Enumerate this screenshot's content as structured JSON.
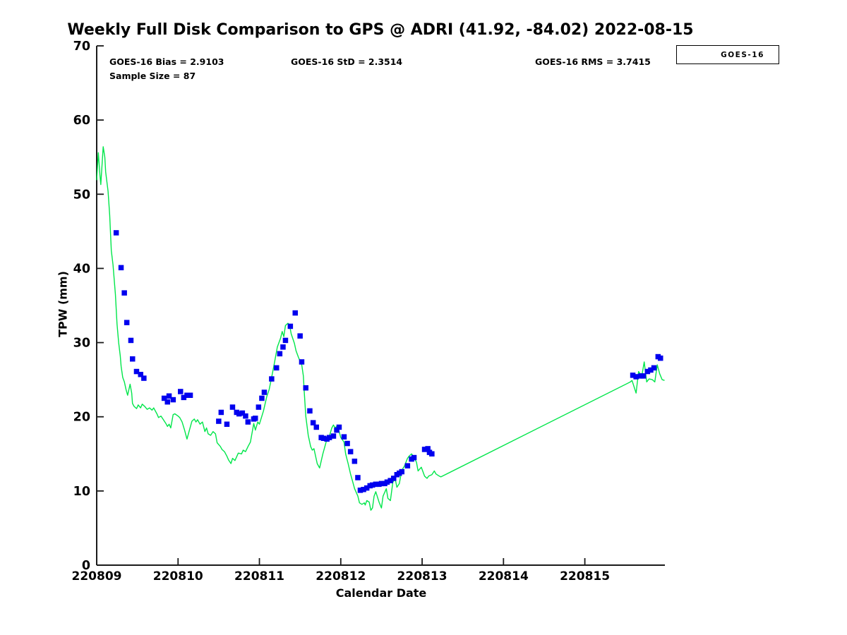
{
  "title": "Weekly Full Disk Comparison to GPS @ ADRI (41.92, -84.02) 2022-08-15",
  "stats": {
    "bias": "GOES-16 Bias = 2.9103",
    "std": "GOES-16 StD = 2.3514",
    "rms": "GOES-16 RMS = 3.7415",
    "sample": "Sample Size = 87"
  },
  "legend": {
    "label": "GOES-16",
    "position": "top-right"
  },
  "axes": {
    "xlabel": "Calendar Date",
    "ylabel": "TPW (mm)"
  },
  "colors": {
    "gps_line": "#00e64a",
    "goes_marker": "#0000ee",
    "axis": "#1a1a1a",
    "background": "#ffffff"
  },
  "chart_data": {
    "type": "line",
    "title": "Weekly Full Disk Comparison to GPS @ ADRI (41.92, -84.02) 2022-08-15",
    "xlabel": "Calendar Date",
    "ylabel": "TPW (mm)",
    "xlim": [
      0,
      6.984
    ],
    "ylim": [
      0,
      70
    ],
    "grid": false,
    "legend_entries": [
      "GOES-16"
    ],
    "x_ticks": [
      {
        "pos": 0,
        "label": "220809"
      },
      {
        "pos": 1,
        "label": "220810"
      },
      {
        "pos": 2,
        "label": "220811"
      },
      {
        "pos": 3,
        "label": "220812"
      },
      {
        "pos": 4,
        "label": "220813"
      },
      {
        "pos": 5,
        "label": "220814"
      },
      {
        "pos": 6,
        "label": "220815"
      }
    ],
    "y_ticks": [
      0,
      10,
      20,
      30,
      40,
      50,
      60,
      70
    ],
    "series": [
      {
        "name": "GPS",
        "type": "line",
        "color_key": "gps_line",
        "points": [
          [
            0.0,
            51.9
          ],
          [
            0.02,
            55.6
          ],
          [
            0.04,
            52.6
          ],
          [
            0.05,
            51.3
          ],
          [
            0.08,
            56.4
          ],
          [
            0.1,
            55.0
          ],
          [
            0.11,
            53.0
          ],
          [
            0.14,
            50.4
          ],
          [
            0.16,
            47.2
          ],
          [
            0.18,
            42.4
          ],
          [
            0.2,
            40.5
          ],
          [
            0.23,
            36.5
          ],
          [
            0.25,
            32.5
          ],
          [
            0.27,
            30.0
          ],
          [
            0.29,
            28.2
          ],
          [
            0.3,
            26.8
          ],
          [
            0.32,
            25.3
          ],
          [
            0.34,
            24.7
          ],
          [
            0.36,
            23.7
          ],
          [
            0.38,
            22.9
          ],
          [
            0.41,
            24.4
          ],
          [
            0.43,
            23.2
          ],
          [
            0.44,
            21.8
          ],
          [
            0.46,
            21.4
          ],
          [
            0.49,
            21.1
          ],
          [
            0.51,
            21.6
          ],
          [
            0.54,
            21.2
          ],
          [
            0.56,
            21.7
          ],
          [
            0.59,
            21.4
          ],
          [
            0.62,
            21.0
          ],
          [
            0.65,
            21.2
          ],
          [
            0.68,
            20.9
          ],
          [
            0.7,
            21.2
          ],
          [
            0.74,
            20.4
          ],
          [
            0.76,
            19.9
          ],
          [
            0.79,
            20.1
          ],
          [
            0.82,
            19.6
          ],
          [
            0.85,
            19.1
          ],
          [
            0.87,
            18.7
          ],
          [
            0.89,
            19.0
          ],
          [
            0.91,
            18.5
          ],
          [
            0.94,
            20.3
          ],
          [
            0.96,
            20.4
          ],
          [
            1.0,
            20.1
          ],
          [
            1.02,
            19.9
          ],
          [
            1.05,
            19.3
          ],
          [
            1.08,
            18.2
          ],
          [
            1.11,
            17.0
          ],
          [
            1.14,
            18.2
          ],
          [
            1.17,
            19.4
          ],
          [
            1.2,
            19.7
          ],
          [
            1.22,
            19.3
          ],
          [
            1.24,
            19.6
          ],
          [
            1.27,
            19.0
          ],
          [
            1.3,
            19.3
          ],
          [
            1.33,
            18.0
          ],
          [
            1.35,
            18.5
          ],
          [
            1.37,
            17.7
          ],
          [
            1.4,
            17.5
          ],
          [
            1.43,
            18.0
          ],
          [
            1.46,
            17.7
          ],
          [
            1.48,
            16.5
          ],
          [
            1.52,
            16.0
          ],
          [
            1.54,
            15.6
          ],
          [
            1.57,
            15.3
          ],
          [
            1.6,
            14.7
          ],
          [
            1.62,
            14.2
          ],
          [
            1.65,
            13.7
          ],
          [
            1.67,
            14.4
          ],
          [
            1.7,
            14.1
          ],
          [
            1.74,
            15.1
          ],
          [
            1.78,
            15.0
          ],
          [
            1.8,
            15.5
          ],
          [
            1.83,
            15.3
          ],
          [
            1.86,
            16.0
          ],
          [
            1.89,
            16.6
          ],
          [
            1.93,
            19.1
          ],
          [
            1.95,
            18.2
          ],
          [
            1.98,
            19.3
          ],
          [
            2.0,
            19.0
          ],
          [
            2.05,
            20.8
          ],
          [
            2.09,
            22.7
          ],
          [
            2.12,
            23.7
          ],
          [
            2.15,
            25.3
          ],
          [
            2.18,
            27.0
          ],
          [
            2.22,
            29.4
          ],
          [
            2.26,
            30.6
          ],
          [
            2.28,
            31.5
          ],
          [
            2.3,
            30.8
          ],
          [
            2.32,
            32.3
          ],
          [
            2.35,
            32.6
          ],
          [
            2.37,
            32.4
          ],
          [
            2.39,
            31.2
          ],
          [
            2.43,
            29.9
          ],
          [
            2.45,
            28.9
          ],
          [
            2.48,
            28.0
          ],
          [
            2.52,
            27.0
          ],
          [
            2.54,
            25.5
          ],
          [
            2.55,
            23.6
          ],
          [
            2.57,
            20.1
          ],
          [
            2.6,
            17.5
          ],
          [
            2.63,
            16.0
          ],
          [
            2.65,
            15.5
          ],
          [
            2.67,
            15.7
          ],
          [
            2.71,
            13.7
          ],
          [
            2.74,
            13.1
          ],
          [
            2.78,
            15.0
          ],
          [
            2.83,
            17.0
          ],
          [
            2.86,
            17.4
          ],
          [
            2.89,
            18.5
          ],
          [
            2.91,
            18.9
          ],
          [
            2.93,
            18.5
          ],
          [
            2.95,
            18.7
          ],
          [
            2.98,
            18.0
          ],
          [
            3.0,
            17.2
          ],
          [
            3.04,
            16.6
          ],
          [
            3.06,
            15.0
          ],
          [
            3.09,
            13.7
          ],
          [
            3.12,
            12.3
          ],
          [
            3.15,
            11.1
          ],
          [
            3.17,
            10.3
          ],
          [
            3.21,
            9.3
          ],
          [
            3.23,
            8.4
          ],
          [
            3.26,
            8.2
          ],
          [
            3.29,
            8.4
          ],
          [
            3.3,
            8.1
          ],
          [
            3.32,
            8.7
          ],
          [
            3.35,
            8.5
          ],
          [
            3.37,
            7.4
          ],
          [
            3.39,
            7.7
          ],
          [
            3.41,
            9.3
          ],
          [
            3.43,
            9.9
          ],
          [
            3.47,
            8.5
          ],
          [
            3.5,
            7.7
          ],
          [
            3.52,
            9.3
          ],
          [
            3.56,
            10.3
          ],
          [
            3.58,
            9.0
          ],
          [
            3.61,
            8.7
          ],
          [
            3.64,
            11.2
          ],
          [
            3.67,
            11.6
          ],
          [
            3.69,
            10.5
          ],
          [
            3.72,
            11.0
          ],
          [
            3.75,
            12.8
          ],
          [
            3.78,
            13.3
          ],
          [
            3.82,
            14.4
          ],
          [
            3.84,
            14.7
          ],
          [
            3.87,
            15.0
          ],
          [
            3.89,
            14.7
          ],
          [
            3.93,
            13.9
          ],
          [
            3.95,
            12.7
          ],
          [
            3.99,
            13.2
          ],
          [
            4.03,
            12.0
          ],
          [
            4.06,
            11.7
          ],
          [
            4.08,
            12.0
          ],
          [
            4.12,
            12.2
          ],
          [
            4.15,
            12.7
          ],
          [
            4.17,
            12.3
          ],
          [
            4.21,
            12.0
          ],
          [
            4.23,
            11.9
          ],
          [
            6.56,
            24.7
          ],
          [
            6.58,
            24.9
          ],
          [
            6.63,
            23.2
          ],
          [
            6.66,
            26.1
          ],
          [
            6.7,
            25.5
          ],
          [
            6.73,
            27.4
          ],
          [
            6.76,
            24.7
          ],
          [
            6.79,
            25.1
          ],
          [
            6.83,
            25.0
          ],
          [
            6.86,
            24.7
          ],
          [
            6.89,
            27.0
          ],
          [
            6.92,
            25.8
          ],
          [
            6.95,
            25.0
          ],
          [
            6.98,
            24.9
          ]
        ]
      },
      {
        "name": "GOES-16",
        "type": "scatter",
        "marker": "square",
        "color_key": "goes_marker",
        "points": [
          [
            0.24,
            44.8
          ],
          [
            0.3,
            40.1
          ],
          [
            0.34,
            36.7
          ],
          [
            0.37,
            32.7
          ],
          [
            0.42,
            30.3
          ],
          [
            0.44,
            27.8
          ],
          [
            0.49,
            26.1
          ],
          [
            0.54,
            25.7
          ],
          [
            0.58,
            25.2
          ],
          [
            0.83,
            22.5
          ],
          [
            0.87,
            22.0
          ],
          [
            0.89,
            22.8
          ],
          [
            0.94,
            22.3
          ],
          [
            1.03,
            23.4
          ],
          [
            1.07,
            22.6
          ],
          [
            1.11,
            22.9
          ],
          [
            1.15,
            22.9
          ],
          [
            1.5,
            19.4
          ],
          [
            1.53,
            20.6
          ],
          [
            1.6,
            19.0
          ],
          [
            1.67,
            21.3
          ],
          [
            1.72,
            20.6
          ],
          [
            1.75,
            20.4
          ],
          [
            1.79,
            20.5
          ],
          [
            1.83,
            20.1
          ],
          [
            1.86,
            19.3
          ],
          [
            1.93,
            19.7
          ],
          [
            1.95,
            19.8
          ],
          [
            1.99,
            21.3
          ],
          [
            2.03,
            22.5
          ],
          [
            2.06,
            23.3
          ],
          [
            2.15,
            25.1
          ],
          [
            2.21,
            26.6
          ],
          [
            2.25,
            28.5
          ],
          [
            2.29,
            29.4
          ],
          [
            2.32,
            30.3
          ],
          [
            2.38,
            32.2
          ],
          [
            2.44,
            34.0
          ],
          [
            2.5,
            30.9
          ],
          [
            2.52,
            27.4
          ],
          [
            2.57,
            23.9
          ],
          [
            2.62,
            20.8
          ],
          [
            2.66,
            19.2
          ],
          [
            2.7,
            18.6
          ],
          [
            2.76,
            17.2
          ],
          [
            2.79,
            17.1
          ],
          [
            2.83,
            17.0
          ],
          [
            2.86,
            17.2
          ],
          [
            2.91,
            17.4
          ],
          [
            2.95,
            18.2
          ],
          [
            2.98,
            18.6
          ],
          [
            3.04,
            17.3
          ],
          [
            3.08,
            16.4
          ],
          [
            3.12,
            15.3
          ],
          [
            3.17,
            14.0
          ],
          [
            3.21,
            11.8
          ],
          [
            3.24,
            10.1
          ],
          [
            3.28,
            10.2
          ],
          [
            3.32,
            10.4
          ],
          [
            3.36,
            10.7
          ],
          [
            3.39,
            10.8
          ],
          [
            3.43,
            10.9
          ],
          [
            3.47,
            10.9
          ],
          [
            3.5,
            11.0
          ],
          [
            3.54,
            11.0
          ],
          [
            3.57,
            11.2
          ],
          [
            3.61,
            11.4
          ],
          [
            3.65,
            11.7
          ],
          [
            3.69,
            12.2
          ],
          [
            3.72,
            12.4
          ],
          [
            3.75,
            12.6
          ],
          [
            3.82,
            13.4
          ],
          [
            3.87,
            14.3
          ],
          [
            3.9,
            14.5
          ],
          [
            4.03,
            15.6
          ],
          [
            4.07,
            15.7
          ],
          [
            4.09,
            15.2
          ],
          [
            4.12,
            15.0
          ],
          [
            6.59,
            25.6
          ],
          [
            6.63,
            25.4
          ],
          [
            6.69,
            25.5
          ],
          [
            6.72,
            25.5
          ],
          [
            6.77,
            26.1
          ],
          [
            6.81,
            26.3
          ],
          [
            6.85,
            26.6
          ],
          [
            6.9,
            28.1
          ],
          [
            6.93,
            27.9
          ]
        ]
      }
    ]
  }
}
